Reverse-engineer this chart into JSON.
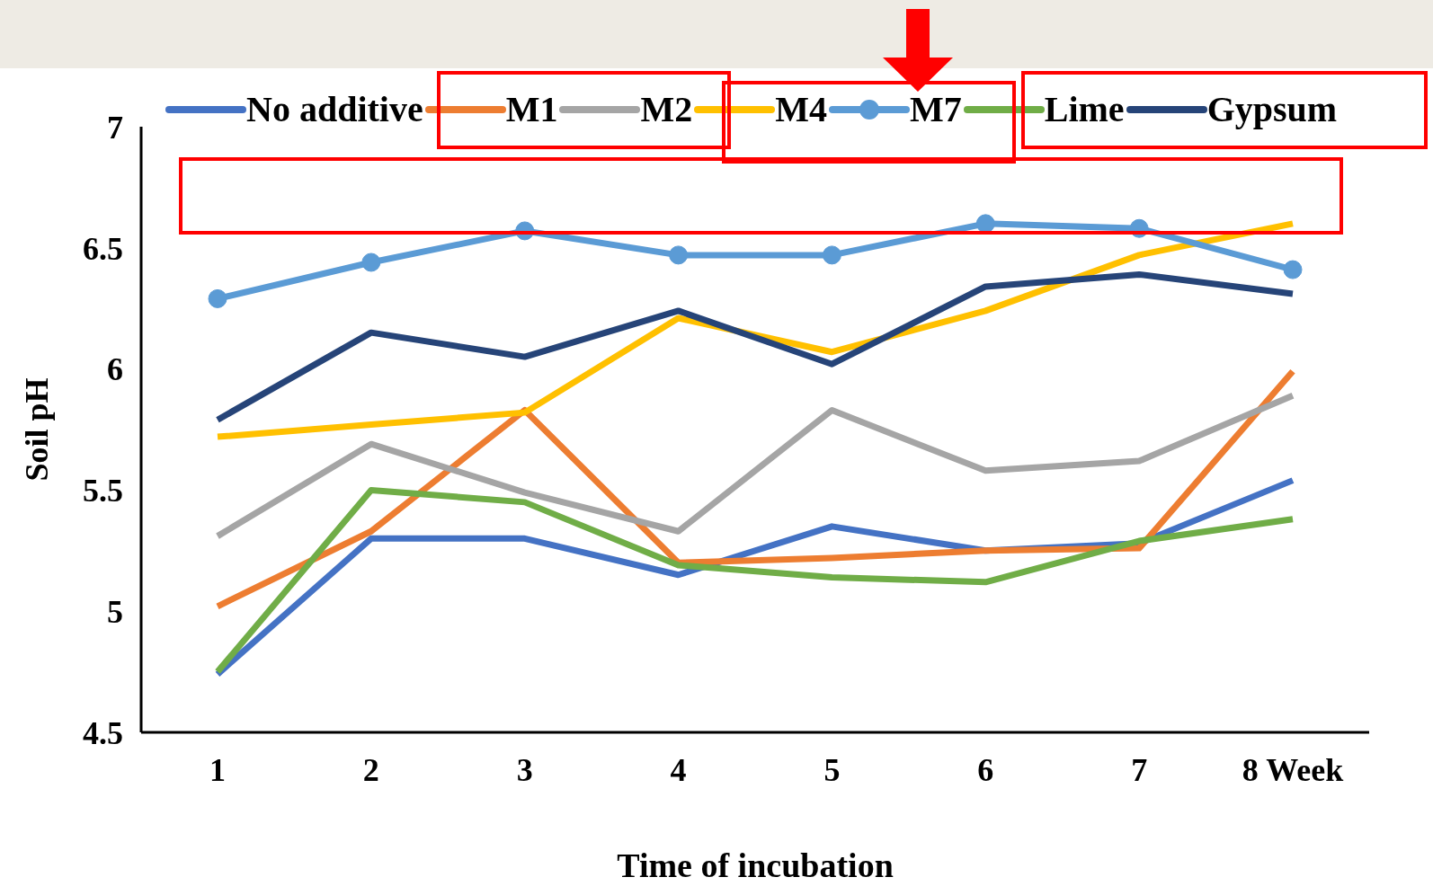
{
  "chart_data": {
    "type": "line",
    "xlabel": "Time of incubation",
    "ylabel": "Soil pH",
    "categories": [
      "1",
      "2",
      "3",
      "4",
      "5",
      "6",
      "7",
      "8 Week"
    ],
    "ylim": [
      4.5,
      7
    ],
    "yticks": [
      4.5,
      5,
      5.5,
      6,
      6.5,
      7
    ],
    "grid": false,
    "legend": "top",
    "line_style": "solid",
    "series": [
      {
        "name": "No additive",
        "color": "#4472c4",
        "marker": "none",
        "values": [
          4.74,
          5.3,
          5.3,
          5.15,
          5.35,
          5.25,
          5.28,
          5.54
        ]
      },
      {
        "name": "M1",
        "color": "#ed7d31",
        "marker": "none",
        "values": [
          5.02,
          5.33,
          5.83,
          5.2,
          5.22,
          5.25,
          5.26,
          5.99
        ]
      },
      {
        "name": "M2",
        "color": "#a5a5a5",
        "marker": "none",
        "values": [
          5.31,
          5.69,
          5.49,
          5.33,
          5.83,
          5.58,
          5.62,
          5.89
        ]
      },
      {
        "name": "M4",
        "color": "#ffc000",
        "marker": "none",
        "values": [
          5.72,
          5.77,
          5.82,
          6.21,
          6.07,
          6.24,
          6.47,
          6.6
        ]
      },
      {
        "name": "M7",
        "color": "#5b9bd5",
        "marker": "circle",
        "values": [
          6.29,
          6.44,
          6.57,
          6.47,
          6.47,
          6.6,
          6.58,
          6.41
        ]
      },
      {
        "name": "Lime",
        "color": "#70ad47",
        "marker": "none",
        "values": [
          4.75,
          5.5,
          5.45,
          5.19,
          5.14,
          5.12,
          5.29,
          5.38
        ]
      },
      {
        "name": "Gypsum",
        "color": "#264478",
        "marker": "none",
        "values": [
          5.79,
          6.15,
          6.05,
          6.24,
          6.02,
          6.34,
          6.39,
          6.31
        ]
      }
    ]
  }
}
